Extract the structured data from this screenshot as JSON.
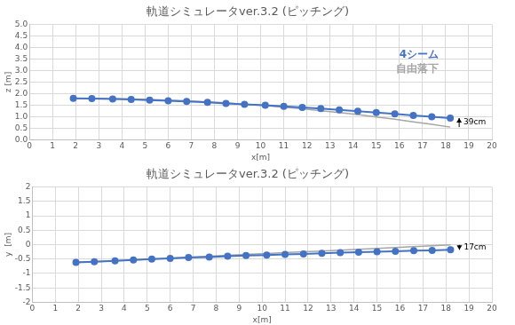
{
  "chart_data": [
    {
      "type": "line",
      "title": "軌道シミュレータver.3.2 (ピッチング)",
      "x_label": "x[m]",
      "y_label": "z [m]",
      "x": [
        1.9,
        2.7,
        3.6,
        4.4,
        5.2,
        6.0,
        6.8,
        7.7,
        8.5,
        9.3,
        10.2,
        11.0,
        11.8,
        12.6,
        13.4,
        14.2,
        15.0,
        15.8,
        16.6,
        17.4,
        18.2
      ],
      "series": [
        {
          "name": "4シーム",
          "color": "#4472c4",
          "marker": "circle",
          "line_style": "solid",
          "values": [
            1.8,
            1.79,
            1.77,
            1.75,
            1.72,
            1.69,
            1.66,
            1.62,
            1.58,
            1.54,
            1.5,
            1.45,
            1.4,
            1.35,
            1.3,
            1.24,
            1.18,
            1.12,
            1.06,
            1.0,
            0.94
          ]
        },
        {
          "name": "自由落下",
          "color": "#a6a6a6",
          "marker": "none",
          "line_style": "solid",
          "values": [
            1.8,
            1.8,
            1.79,
            1.77,
            1.75,
            1.72,
            1.69,
            1.64,
            1.6,
            1.54,
            1.48,
            1.41,
            1.34,
            1.26,
            1.18,
            1.09,
            0.99,
            0.89,
            0.78,
            0.67,
            0.55
          ]
        }
      ],
      "annotations": [
        {
          "text": "39cm"
        }
      ],
      "legend": "upper right",
      "grid": true,
      "xlim": [
        0,
        20
      ],
      "xticks": [
        0,
        1,
        2,
        3,
        4,
        5,
        6,
        7,
        8,
        9,
        10,
        11,
        12,
        13,
        14,
        15,
        16,
        17,
        18,
        19,
        20
      ],
      "ylim": [
        0,
        5
      ],
      "yticks": [
        {
          "value": 0,
          "label": "0.0"
        },
        {
          "value": 0.5,
          "label": "0.5"
        },
        {
          "value": 1,
          "label": "1.0"
        },
        {
          "value": 1.5,
          "label": "1.5"
        },
        {
          "value": 2,
          "label": "2.0"
        },
        {
          "value": 2.5,
          "label": "2.5"
        },
        {
          "value": 3,
          "label": "3.0"
        },
        {
          "value": 3.5,
          "label": "3.5"
        },
        {
          "value": 4,
          "label": "4.0"
        },
        {
          "value": 4.5,
          "label": "4.5"
        },
        {
          "value": 5,
          "label": "5.0"
        }
      ]
    },
    {
      "type": "line",
      "title": "軌道シミュレータver.3.2 (ピッチング)",
      "x_label": "x[m]",
      "y_label": "y  [m]",
      "x": [
        1.9,
        2.7,
        3.6,
        4.4,
        5.2,
        6.0,
        6.8,
        7.7,
        8.5,
        9.3,
        10.2,
        11.0,
        11.8,
        12.6,
        13.4,
        14.2,
        15.0,
        15.8,
        16.6,
        17.4,
        18.2
      ],
      "series": [
        {
          "color": "#4472c4",
          "marker": "circle",
          "line_style": "solid",
          "values": [
            -0.62,
            -0.59,
            -0.56,
            -0.53,
            -0.5,
            -0.48,
            -0.45,
            -0.43,
            -0.4,
            -0.38,
            -0.36,
            -0.34,
            -0.32,
            -0.3,
            -0.28,
            -0.26,
            -0.25,
            -0.23,
            -0.21,
            -0.2,
            -0.18
          ]
        },
        {
          "color": "#a6a6a6",
          "marker": "none",
          "line_style": "solid",
          "values": [
            -0.62,
            -0.59,
            -0.56,
            -0.53,
            -0.5,
            -0.47,
            -0.44,
            -0.4,
            -0.37,
            -0.34,
            -0.31,
            -0.28,
            -0.25,
            -0.22,
            -0.19,
            -0.16,
            -0.13,
            -0.1,
            -0.07,
            -0.04,
            -0.01
          ]
        }
      ],
      "annotations": [
        {
          "text": "17cm"
        }
      ],
      "grid": true,
      "xlim": [
        0,
        20
      ],
      "xticks": [
        0,
        1,
        2,
        3,
        4,
        5,
        6,
        7,
        8,
        9,
        10,
        11,
        12,
        13,
        14,
        15,
        16,
        17,
        18,
        19,
        20
      ],
      "ylim": [
        -2,
        2
      ],
      "yticks": [
        -2,
        -1.5,
        -1,
        -0.5,
        0,
        0.5,
        1,
        1.5,
        2
      ]
    }
  ]
}
